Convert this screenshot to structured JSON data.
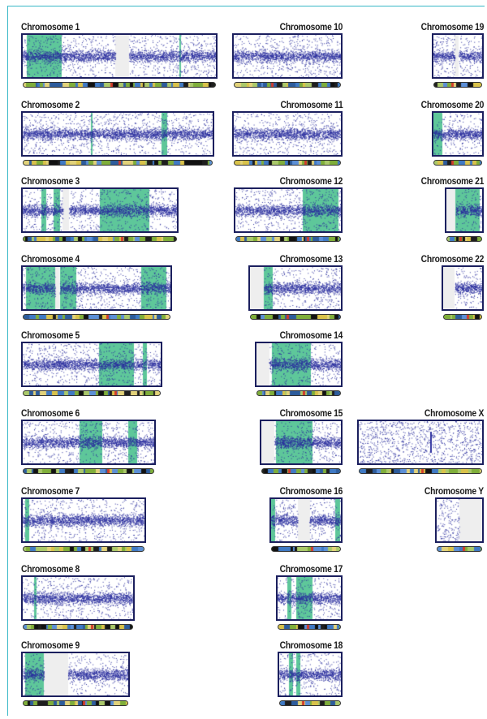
{
  "figure": {
    "border_color": "#39b8c7",
    "colors": {
      "dots": "#2b2f9e",
      "homozygous": "#5ec79a",
      "gap": "#eeeeee",
      "frame": "#1b1f5e"
    },
    "chromosomes": [
      {
        "label": "Chromosome 1"
      },
      {
        "label": "Chromosome 2"
      },
      {
        "label": "Chromosome 3"
      },
      {
        "label": "Chromosome 4"
      },
      {
        "label": "Chromosome 5"
      },
      {
        "label": "Chromosome 6"
      },
      {
        "label": "Chromosome 7"
      },
      {
        "label": "Chromosome 8"
      },
      {
        "label": "Chromosome 9"
      },
      {
        "label": "Chromosome 10"
      },
      {
        "label": "Chromosome 11"
      },
      {
        "label": "Chromosome 12"
      },
      {
        "label": "Chromosome 13"
      },
      {
        "label": "Chromosome 14"
      },
      {
        "label": "Chromosome 15"
      },
      {
        "label": "Chromosome 16"
      },
      {
        "label": "Chromosome 17"
      },
      {
        "label": "Chromosome 18"
      },
      {
        "label": "Chromosome 19"
      },
      {
        "label": "Chromosome 20"
      },
      {
        "label": "Chromosome 21"
      },
      {
        "label": "Chromosome 22"
      },
      {
        "label": "Chromosome X"
      },
      {
        "label": "Chromosome Y"
      }
    ]
  }
}
